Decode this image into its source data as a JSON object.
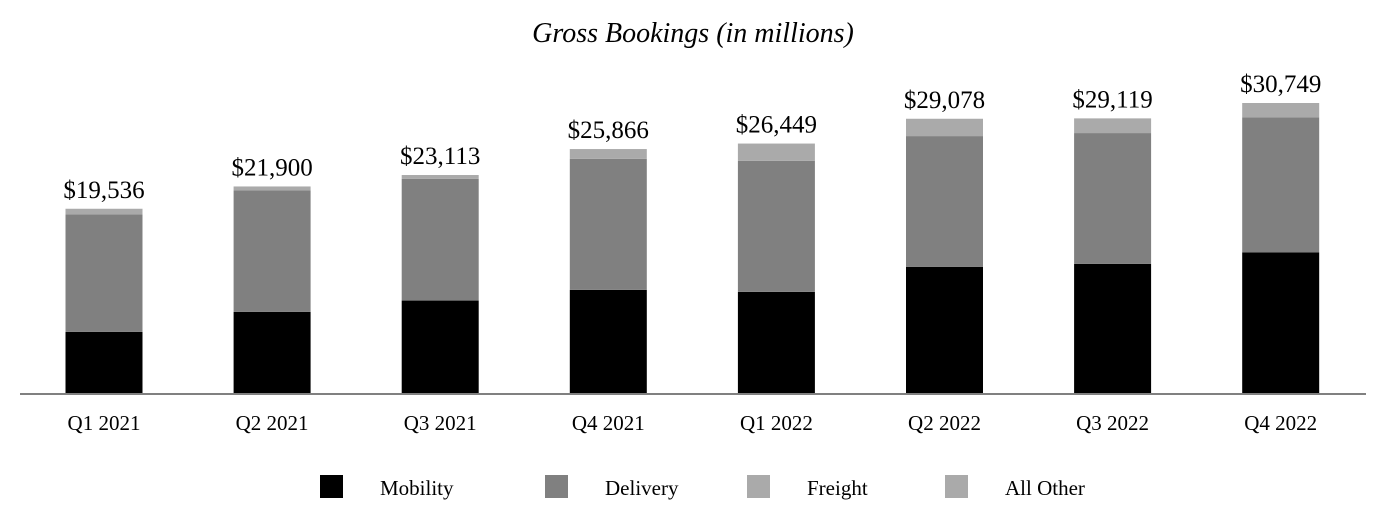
{
  "chart_data": {
    "type": "bar",
    "stacked": true,
    "title": "Gross Bookings (in millions)",
    "xlabel": "",
    "ylabel": "",
    "ylim": [
      0,
      32000
    ],
    "grid": false,
    "legend_position": "bottom",
    "categories": [
      "Q1 2021",
      "Q2 2021",
      "Q3 2021",
      "Q4 2021",
      "Q1 2022",
      "Q2 2022",
      "Q3 2022",
      "Q4 2022"
    ],
    "totals": [
      19536,
      21900,
      23113,
      25866,
      26449,
      29078,
      29119,
      30749
    ],
    "total_labels": [
      "$19,536",
      "$21,900",
      "$23,113",
      "$25,866",
      "$26,449",
      "$29,078",
      "$29,119",
      "$30,749"
    ],
    "series": [
      {
        "name": "Mobility",
        "color": "#000000",
        "values": [
          6487,
          8608,
          9800,
          10933,
          10723,
          13364,
          13684,
          14904
        ]
      },
      {
        "name": "Delivery",
        "color": "#808080",
        "values": [
          12462,
          12889,
          12900,
          13903,
          13903,
          13876,
          13877,
          14315
        ]
      },
      {
        "name": "Freight",
        "color": "#aaaaaa",
        "values": [
          587,
          403,
          413,
          1030,
          1823,
          1838,
          1558,
          1530
        ]
      },
      {
        "name": "All Other",
        "color": "#aaaaaa",
        "values": [
          0,
          0,
          0,
          0,
          0,
          0,
          0,
          0
        ]
      }
    ]
  }
}
